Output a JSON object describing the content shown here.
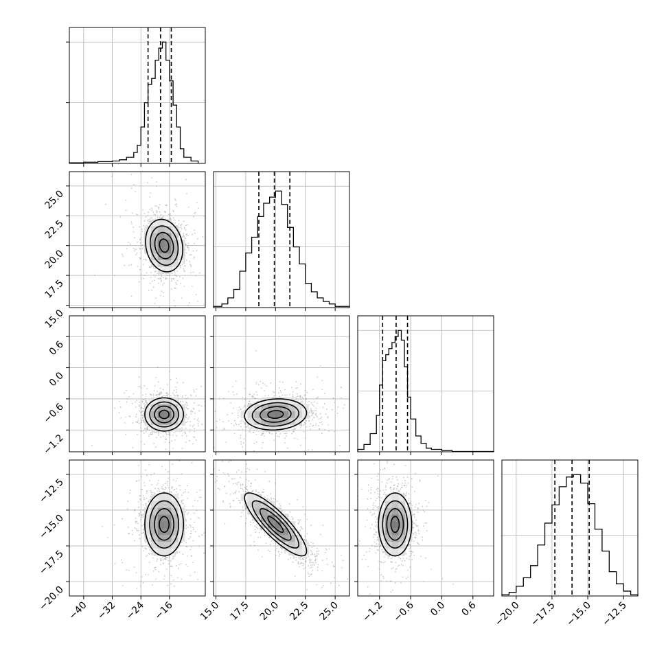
{
  "chart_data": {
    "type": "corner",
    "grid": true,
    "colors": {
      "line": "#000000",
      "grid": "#b0b0b0",
      "scatter": "#9a9a9a",
      "panel": "#ffffff"
    },
    "params": [
      {
        "range": [
          -44,
          -6
        ],
        "ticks": [
          -40,
          -32,
          -24,
          -16
        ],
        "tick_labels": [
          "−40",
          "−32",
          "−24",
          "−16"
        ]
      },
      {
        "range": [
          14.8,
          26.2
        ],
        "ticks": [
          15,
          17.5,
          20,
          22.5,
          25
        ],
        "tick_labels": [
          "15.0",
          "17.5",
          "20.0",
          "22.5",
          "25.0"
        ]
      },
      {
        "range": [
          -1.62,
          1.0
        ],
        "ticks": [
          -1.2,
          -0.6,
          0.0,
          0.6
        ],
        "tick_labels": [
          "−1.2",
          "−0.6",
          "0.0",
          "0.6"
        ]
      },
      {
        "range": [
          -21,
          -11.5
        ],
        "ticks": [
          -20,
          -17.5,
          -15,
          -12.5
        ],
        "tick_labels": [
          "−20.0",
          "−17.5",
          "−15.0",
          "−12.5"
        ]
      }
    ],
    "hist_ylim": [
      0,
      1.12
    ],
    "hist_yticks": [
      0.5,
      1.0
    ],
    "histograms": [
      {
        "edges": [
          -44,
          -40,
          -36,
          -32,
          -30,
          -28,
          -26,
          -25,
          -24,
          -23,
          -22,
          -21,
          -20,
          -19,
          -18,
          -17,
          -16,
          -15,
          -14,
          -13,
          -12,
          -10,
          -8
        ],
        "counts": [
          0.005,
          0.01,
          0.015,
          0.02,
          0.03,
          0.05,
          0.09,
          0.15,
          0.3,
          0.5,
          0.65,
          0.7,
          0.85,
          0.95,
          1.0,
          0.85,
          0.68,
          0.48,
          0.3,
          0.12,
          0.05,
          0.02
        ],
        "quantiles": [
          -22,
          -18.5,
          -15.5
        ]
      },
      {
        "edges": [
          14.8,
          15.5,
          16,
          16.5,
          17,
          17.5,
          18,
          18.5,
          19,
          19.5,
          20,
          20.5,
          21,
          21.5,
          22,
          22.5,
          23,
          23.5,
          24,
          24.5,
          25,
          26.2
        ],
        "counts": [
          0.01,
          0.03,
          0.08,
          0.15,
          0.3,
          0.45,
          0.58,
          0.75,
          0.86,
          0.91,
          0.96,
          0.85,
          0.66,
          0.5,
          0.36,
          0.2,
          0.13,
          0.08,
          0.05,
          0.03,
          0.01
        ],
        "quantiles": [
          18.6,
          19.9,
          21.2
        ]
      },
      {
        "edges": [
          -1.62,
          -1.5,
          -1.38,
          -1.26,
          -1.2,
          -1.14,
          -1.08,
          -1.02,
          -0.96,
          -0.9,
          -0.84,
          -0.78,
          -0.72,
          -0.66,
          -0.6,
          -0.5,
          -0.4,
          -0.3,
          -0.2,
          0.0,
          0.2,
          1.0
        ],
        "counts": [
          0.02,
          0.06,
          0.15,
          0.3,
          0.55,
          0.75,
          0.8,
          0.85,
          0.9,
          0.95,
          1.0,
          0.92,
          0.7,
          0.45,
          0.27,
          0.13,
          0.07,
          0.03,
          0.02,
          0.01,
          0.003
        ],
        "quantiles": [
          -1.14,
          -0.88,
          -0.66
        ]
      },
      {
        "edges": [
          -21,
          -20.5,
          -20,
          -19.5,
          -19,
          -18.5,
          -18,
          -17.5,
          -17,
          -16.5,
          -16,
          -15.5,
          -15,
          -14.5,
          -14,
          -13.5,
          -13,
          -12.5,
          -12,
          -11.5
        ],
        "counts": [
          0.01,
          0.03,
          0.08,
          0.15,
          0.25,
          0.42,
          0.6,
          0.75,
          0.9,
          0.98,
          1.0,
          0.93,
          0.76,
          0.55,
          0.37,
          0.2,
          0.1,
          0.04,
          0.01
        ],
        "quantiles": [
          -17.3,
          -16.1,
          -14.9
        ]
      }
    ],
    "correlations": [
      {
        "x": 0,
        "y": 1,
        "center": [
          -17.5,
          20.0
        ],
        "sd": [
          2.6,
          1.1
        ],
        "rho": -0.15
      },
      {
        "x": 0,
        "y": 2,
        "center": [
          -17.5,
          -0.9
        ],
        "sd": [
          2.7,
          0.16
        ],
        "rho": 0.0
      },
      {
        "x": 1,
        "y": 2,
        "center": [
          20.0,
          -0.9
        ],
        "sd": [
          1.3,
          0.15
        ],
        "rho": 0.1
      },
      {
        "x": 0,
        "y": 3,
        "center": [
          -17.5,
          -16.0
        ],
        "sd": [
          2.7,
          1.1
        ],
        "rho": 0.0
      },
      {
        "x": 1,
        "y": 3,
        "center": [
          20.0,
          -16.0
        ],
        "sd": [
          1.3,
          1.1
        ],
        "rho": -0.85
      },
      {
        "x": 2,
        "y": 3,
        "center": [
          -0.9,
          -16.0
        ],
        "sd": [
          0.16,
          1.1
        ],
        "rho": 0.0
      }
    ],
    "contour_levels_sigma": [
      0.5,
      1.0,
      1.5,
      2.0
    ],
    "scatter_points_per_panel": 1500
  }
}
